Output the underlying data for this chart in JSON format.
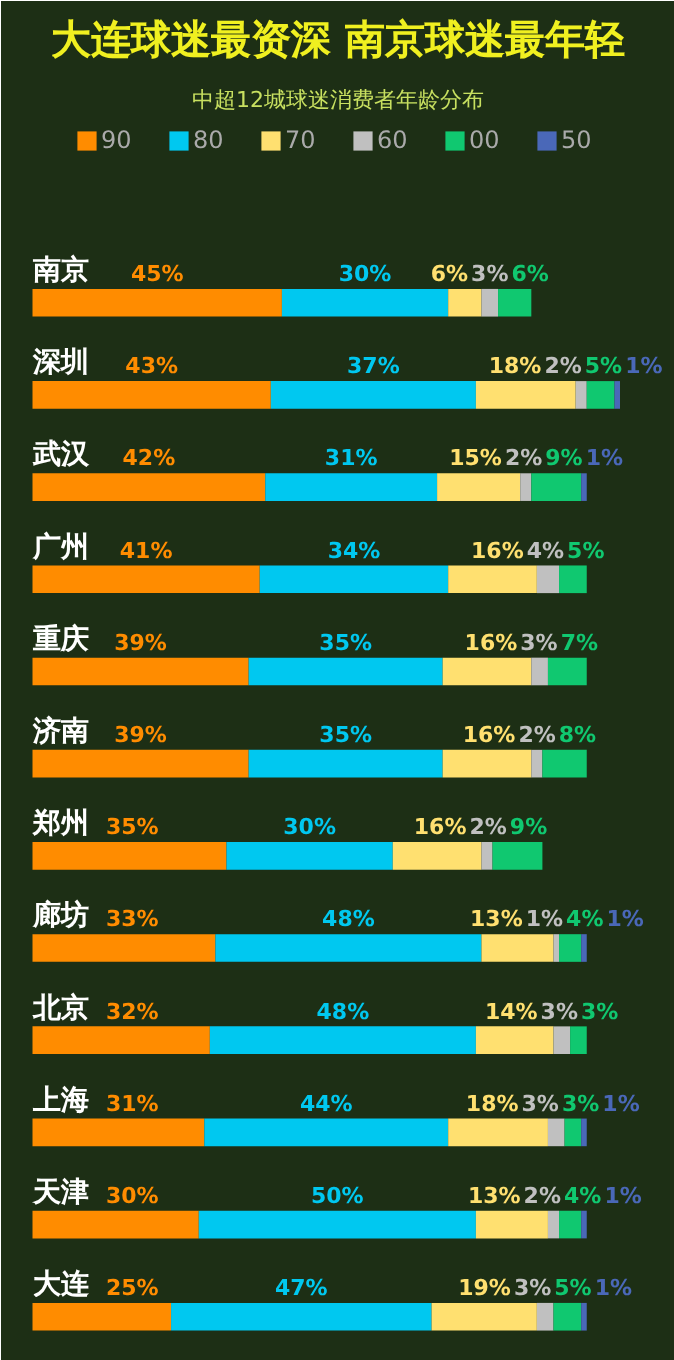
{
  "chart_data": {
    "type": "bar",
    "orientation": "horizontal",
    "stacked": true,
    "title": "大连球迷最资深 南京球迷最年轻",
    "subtitle": "中超12城球迷消费者年龄分布",
    "categories": [
      "南京",
      "深圳",
      "武汉",
      "广州",
      "重庆",
      "济南",
      "郑州",
      "廊坊",
      "北京",
      "上海",
      "天津",
      "大连"
    ],
    "series": [
      {
        "name": "90",
        "color": "#ff8c00",
        "values": [
          45,
          43,
          42,
          41,
          39,
          39,
          35,
          33,
          32,
          31,
          30,
          25
        ],
        "value_labels": [
          "45%",
          "43%",
          "42%",
          "41%",
          "39%",
          "39%",
          "35%",
          "33%",
          "32%",
          "31%",
          "30%",
          "25%"
        ]
      },
      {
        "name": "80",
        "color": "#00c8f0",
        "values": [
          30,
          37,
          31,
          34,
          35,
          35,
          30,
          48,
          48,
          44,
          50,
          47
        ],
        "value_labels": [
          "30%",
          "37%",
          "31%",
          "34%",
          "35%",
          "35%",
          "30%",
          "48%",
          "48%",
          "44%",
          "50%",
          "47%"
        ]
      },
      {
        "name": "70",
        "color": "#ffe070",
        "values": [
          6,
          18,
          15,
          16,
          16,
          16,
          16,
          13,
          14,
          18,
          13,
          19
        ],
        "value_labels": [
          "6%",
          "18%",
          "15%",
          "16%",
          "16%",
          "16%",
          "16%",
          "13%",
          "14%",
          "18%",
          "13%",
          "19%"
        ]
      },
      {
        "name": "60",
        "color": "#c0c0c0",
        "values": [
          3,
          2,
          2,
          4,
          3,
          2,
          2,
          1,
          3,
          3,
          2,
          3
        ],
        "value_labels": [
          "3%",
          "2%",
          "2%",
          "4%",
          "3%",
          "2%",
          "2%",
          "1%",
          "3%",
          "3%",
          "2%",
          "3%"
        ]
      },
      {
        "name": "00",
        "color": "#10c870",
        "values": [
          6,
          5,
          9,
          5,
          7,
          8,
          9,
          4,
          3,
          3,
          4,
          5
        ],
        "value_labels": [
          "6%",
          "5%",
          "9%",
          "5%",
          "7%",
          "8%",
          "9%",
          "4%",
          "3%",
          "3%",
          "4%",
          "5%"
        ]
      },
      {
        "name": "50",
        "color": "#4a68b8",
        "values": [
          null,
          1,
          1,
          null,
          null,
          null,
          null,
          1,
          null,
          1,
          1,
          1
        ],
        "value_labels": [
          null,
          "1%",
          "1%",
          null,
          null,
          null,
          null,
          "1%",
          null,
          "1%",
          "1%",
          "1%"
        ]
      }
    ],
    "legend": "top",
    "grid": false
  }
}
